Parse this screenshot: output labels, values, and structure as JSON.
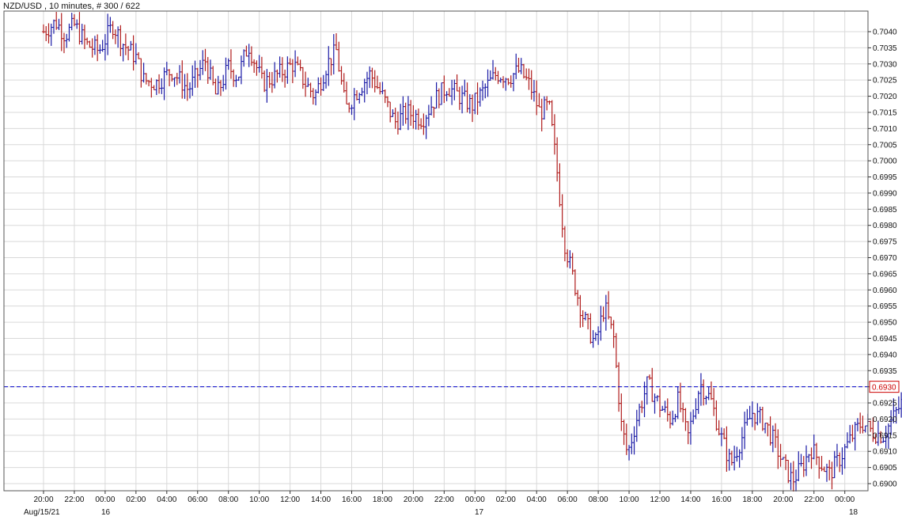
{
  "chart_data": {
    "type": "ohlc",
    "title": "NZD/USD , 10 minutes, # 300 / 622",
    "ylim": [
      0.6898,
      0.7046
    ],
    "y_ticks": [
      "0.7040",
      "0.7035",
      "0.7030",
      "0.7025",
      "0.7020",
      "0.7015",
      "0.7010",
      "0.7005",
      "0.7000",
      "0.6995",
      "0.6990",
      "0.6985",
      "0.6980",
      "0.6975",
      "0.6970",
      "0.6965",
      "0.6960",
      "0.6955",
      "0.6950",
      "0.6945",
      "0.6940",
      "0.6935",
      "0.6930",
      "0.6925",
      "0.6920",
      "0.6915",
      "0.6910",
      "0.6905",
      "0.6900"
    ],
    "x_ticks": [
      "20:00",
      "22:00",
      "00:00",
      "02:00",
      "04:00",
      "06:00",
      "08:00",
      "10:00",
      "12:00",
      "14:00",
      "16:00",
      "18:00",
      "20:00",
      "22:00",
      "00:00",
      "02:00",
      "04:00",
      "06:00",
      "08:00",
      "10:00",
      "12:00",
      "14:00",
      "16:00",
      "18:00",
      "20:00",
      "22:00",
      "00:00"
    ],
    "date_labels": [
      "Aug/15/21",
      "16",
      "17",
      "18"
    ],
    "current_price": "0.6930",
    "grid": true,
    "colors": {
      "up": "#1a1aa6",
      "down": "#b01c1c",
      "current_line": "#0000cc",
      "price_box": "#cc0000",
      "grid": "#d9d9d9"
    },
    "path": [
      {
        "t": 0,
        "p": 0.704
      },
      {
        "t": 0.8,
        "p": 0.7043
      },
      {
        "t": 1.4,
        "p": 0.7039
      },
      {
        "t": 2.0,
        "p": 0.7042
      },
      {
        "t": 2.8,
        "p": 0.7036
      },
      {
        "t": 3.6,
        "p": 0.7034
      },
      {
        "t": 4.5,
        "p": 0.7042
      },
      {
        "t": 5.2,
        "p": 0.7036
      },
      {
        "t": 6.0,
        "p": 0.7032
      },
      {
        "t": 6.5,
        "p": 0.7025
      },
      {
        "t": 7.3,
        "p": 0.7024
      },
      {
        "t": 8.3,
        "p": 0.7028
      },
      {
        "t": 9.4,
        "p": 0.7022
      },
      {
        "t": 10.5,
        "p": 0.7031
      },
      {
        "t": 11.2,
        "p": 0.702
      },
      {
        "t": 12.0,
        "p": 0.7029
      },
      {
        "t": 12.6,
        "p": 0.7026
      },
      {
        "t": 13.3,
        "p": 0.7036
      },
      {
        "t": 14.2,
        "p": 0.7024
      },
      {
        "t": 15.0,
        "p": 0.7026
      },
      {
        "t": 16.2,
        "p": 0.703
      },
      {
        "t": 17.0,
        "p": 0.7024
      },
      {
        "t": 17.6,
        "p": 0.702
      },
      {
        "t": 18.4,
        "p": 0.703
      },
      {
        "t": 19.0,
        "p": 0.7034
      },
      {
        "t": 19.6,
        "p": 0.7016
      },
      {
        "t": 20.4,
        "p": 0.7022
      },
      {
        "t": 21.2,
        "p": 0.7027
      },
      {
        "t": 22.0,
        "p": 0.702
      },
      {
        "t": 22.8,
        "p": 0.7012
      },
      {
        "t": 23.6,
        "p": 0.7015
      },
      {
        "t": 24.6,
        "p": 0.7013
      },
      {
        "t": 25.4,
        "p": 0.7019
      },
      {
        "t": 26.2,
        "p": 0.7023
      },
      {
        "t": 27.0,
        "p": 0.702
      },
      {
        "t": 27.8,
        "p": 0.7017
      },
      {
        "t": 28.6,
        "p": 0.7022
      },
      {
        "t": 29.4,
        "p": 0.7027
      },
      {
        "t": 30.2,
        "p": 0.7026
      },
      {
        "t": 30.9,
        "p": 0.7028
      },
      {
        "t": 31.6,
        "p": 0.7023
      },
      {
        "t": 32.2,
        "p": 0.7015
      },
      {
        "t": 32.8,
        "p": 0.7017
      },
      {
        "t": 33.3,
        "p": 0.6998
      },
      {
        "t": 33.8,
        "p": 0.6975
      },
      {
        "t": 34.4,
        "p": 0.6963
      },
      {
        "t": 35.0,
        "p": 0.6952
      },
      {
        "t": 35.8,
        "p": 0.6943
      },
      {
        "t": 36.4,
        "p": 0.6955
      },
      {
        "t": 37.0,
        "p": 0.6945
      },
      {
        "t": 37.5,
        "p": 0.6918
      },
      {
        "t": 37.9,
        "p": 0.6909
      },
      {
        "t": 38.6,
        "p": 0.6922
      },
      {
        "t": 39.2,
        "p": 0.6931
      },
      {
        "t": 40.0,
        "p": 0.6924
      },
      {
        "t": 40.7,
        "p": 0.692
      },
      {
        "t": 41.2,
        "p": 0.6926
      },
      {
        "t": 41.8,
        "p": 0.6914
      },
      {
        "t": 42.6,
        "p": 0.6931
      },
      {
        "t": 43.3,
        "p": 0.6926
      },
      {
        "t": 44.0,
        "p": 0.6914
      },
      {
        "t": 44.6,
        "p": 0.6906
      },
      {
        "t": 45.3,
        "p": 0.6914
      },
      {
        "t": 46.0,
        "p": 0.6922
      },
      {
        "t": 46.8,
        "p": 0.6919
      },
      {
        "t": 47.5,
        "p": 0.6912
      },
      {
        "t": 48.0,
        "p": 0.6906
      },
      {
        "t": 48.6,
        "p": 0.6901
      },
      {
        "t": 49.2,
        "p": 0.6905
      },
      {
        "t": 49.8,
        "p": 0.6911
      },
      {
        "t": 50.5,
        "p": 0.6906
      },
      {
        "t": 51.0,
        "p": 0.6903
      },
      {
        "t": 51.7,
        "p": 0.6908
      },
      {
        "t": 52.4,
        "p": 0.6914
      },
      {
        "t": 53.1,
        "p": 0.6919
      },
      {
        "t": 53.8,
        "p": 0.6916
      },
      {
        "t": 54.5,
        "p": 0.6915
      },
      {
        "t": 55.1,
        "p": 0.692
      },
      {
        "t": 55.8,
        "p": 0.6926
      },
      {
        "t": 56.2,
        "p": 0.693
      }
    ]
  }
}
